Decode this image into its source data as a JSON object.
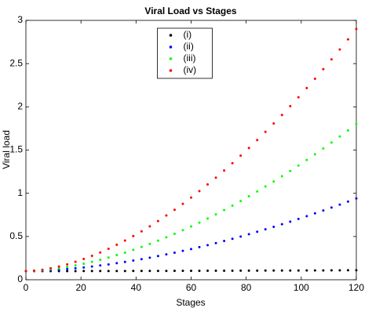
{
  "chart_data": {
    "type": "scatter",
    "title": "Viral Load vs Stages",
    "x_label": "Stages",
    "y_label": "Viral load",
    "x": [
      0,
      3,
      6,
      9,
      12,
      15,
      18,
      21,
      24,
      27,
      30,
      33,
      36,
      39,
      42,
      45,
      48,
      51,
      54,
      57,
      60,
      63,
      66,
      69,
      72,
      75,
      78,
      81,
      84,
      87,
      90,
      93,
      96,
      99,
      102,
      105,
      108,
      111,
      114,
      117,
      120
    ],
    "series": [
      {
        "name": "(i)",
        "color": "#000000",
        "values": [
          0.1,
          0.1,
          0.1,
          0.1,
          0.1,
          0.1,
          0.1,
          0.101,
          0.101,
          0.101,
          0.101,
          0.101,
          0.101,
          0.102,
          0.102,
          0.102,
          0.102,
          0.102,
          0.103,
          0.103,
          0.103,
          0.103,
          0.104,
          0.104,
          0.104,
          0.104,
          0.105,
          0.105,
          0.105,
          0.106,
          0.106,
          0.106,
          0.107,
          0.107,
          0.108,
          0.108,
          0.108,
          0.109,
          0.109,
          0.11,
          0.11
        ]
      },
      {
        "name": "(ii)",
        "color": "#0000ff",
        "values": [
          0.1,
          0.102,
          0.105,
          0.11,
          0.116,
          0.124,
          0.132,
          0.142,
          0.153,
          0.165,
          0.177,
          0.191,
          0.206,
          0.222,
          0.238,
          0.255,
          0.274,
          0.293,
          0.313,
          0.334,
          0.355,
          0.377,
          0.4,
          0.424,
          0.449,
          0.474,
          0.5,
          0.527,
          0.555,
          0.583,
          0.612,
          0.642,
          0.672,
          0.703,
          0.735,
          0.768,
          0.801,
          0.835,
          0.869,
          0.904,
          0.94
        ]
      },
      {
        "name": "(iii)",
        "color": "#00ff00",
        "values": [
          0.1,
          0.103,
          0.11,
          0.12,
          0.132,
          0.148,
          0.165,
          0.185,
          0.207,
          0.231,
          0.257,
          0.285,
          0.314,
          0.346,
          0.379,
          0.415,
          0.452,
          0.49,
          0.531,
          0.573,
          0.616,
          0.661,
          0.708,
          0.756,
          0.806,
          0.858,
          0.91,
          0.965,
          1.021,
          1.078,
          1.136,
          1.197,
          1.258,
          1.321,
          1.386,
          1.451,
          1.518,
          1.587,
          1.657,
          1.727,
          1.8
        ]
      },
      {
        "name": "(iv)",
        "color": "#ff0000",
        "values": [
          0.1,
          0.105,
          0.116,
          0.132,
          0.153,
          0.178,
          0.207,
          0.24,
          0.276,
          0.315,
          0.358,
          0.404,
          0.453,
          0.505,
          0.56,
          0.618,
          0.679,
          0.743,
          0.809,
          0.878,
          0.95,
          1.025,
          1.102,
          1.181,
          1.263,
          1.348,
          1.435,
          1.524,
          1.616,
          1.711,
          1.807,
          1.906,
          2.007,
          2.111,
          2.217,
          2.325,
          2.436,
          2.549,
          2.664,
          2.78,
          2.9
        ]
      }
    ],
    "xlim": [
      0,
      120
    ],
    "xticks": [
      0,
      20,
      40,
      60,
      80,
      100,
      120
    ],
    "ylim": [
      0,
      3
    ],
    "yticks": [
      0,
      0.5,
      1,
      1.5,
      2,
      2.5,
      3
    ],
    "legend": "north"
  }
}
